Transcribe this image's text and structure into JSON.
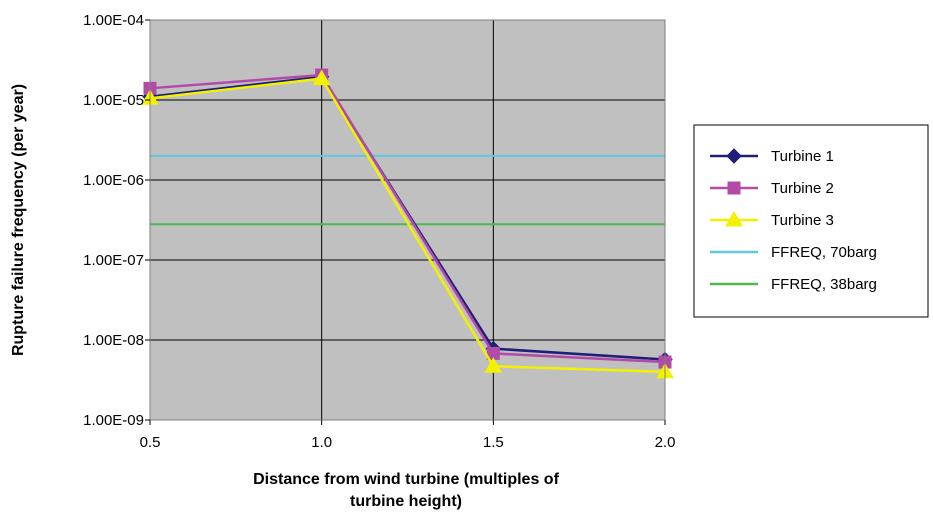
{
  "chart_data": {
    "type": "line",
    "title": "",
    "xlabel_lines": [
      "Distance from wind turbine (multiples of",
      "turbine height)"
    ],
    "ylabel": "Rupture failure frequency (per year)",
    "y_scale": "log",
    "ylim": [
      1e-09,
      0.0001
    ],
    "xlim": [
      0.5,
      2.0
    ],
    "x": [
      0.5,
      1.0,
      1.5,
      2.0
    ],
    "x_tick_labels": [
      "0.5",
      "1.0",
      "1.5",
      "2.0"
    ],
    "y_tick_labels": [
      "1.00E-04",
      "1.00E-05",
      "1.00E-06",
      "1.00E-07",
      "1.00E-08",
      "1.00E-09"
    ],
    "y_tick_values": [
      0.0001,
      1e-05,
      1e-06,
      1e-07,
      1e-08,
      1e-09
    ],
    "grid": true,
    "legend_position": "right",
    "series": [
      {
        "name": "Turbine  1",
        "color": "#1f1f7a",
        "marker": "diamond",
        "values": [
          1.1e-05,
          1.95e-05,
          7.8e-09,
          5.7e-09
        ]
      },
      {
        "name": "Turbine 2",
        "color": "#b24aa8",
        "marker": "square",
        "values": [
          1.4e-05,
          2.05e-05,
          6.8e-09,
          5.3e-09
        ]
      },
      {
        "name": "Turbine 3",
        "color": "#f2f200",
        "marker": "triangle",
        "values": [
          1.05e-05,
          1.85e-05,
          4.7e-09,
          4e-09
        ]
      }
    ],
    "reference_lines": [
      {
        "name": "FFREQ, 70barg",
        "color": "#5fc8dc",
        "value": 2e-06
      },
      {
        "name": "FFREQ, 38barg",
        "color": "#4db84d",
        "value": 2.8e-07
      }
    ]
  }
}
